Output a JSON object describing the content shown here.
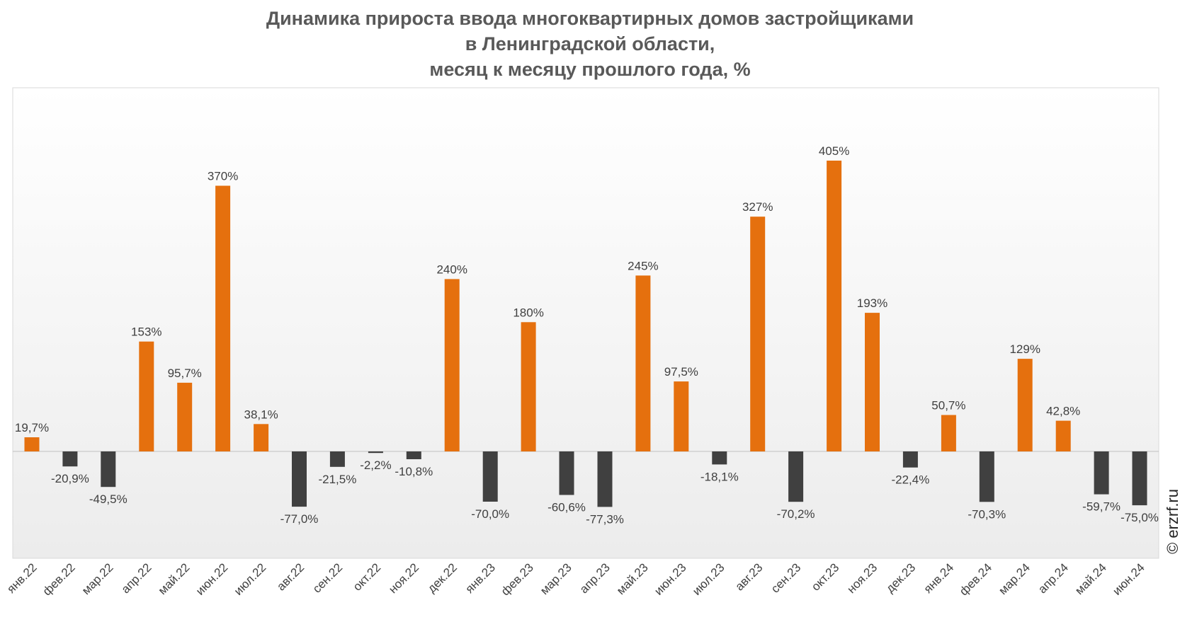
{
  "chart_data": {
    "type": "bar",
    "title": [
      "Динамика прироста ввода многоквартирных домов застройщиками",
      "в Ленинградской области,",
      "месяц к месяцу прошлого года, %"
    ],
    "categories": [
      "янв.22",
      "фев.22",
      "мар.22",
      "апр.22",
      "май.22",
      "июн.22",
      "июл.22",
      "авг.22",
      "сен.22",
      "окт.22",
      "ноя.22",
      "дек.22",
      "янв.23",
      "фев.23",
      "мар.23",
      "апр.23",
      "май.23",
      "июн.23",
      "июл.23",
      "авг.23",
      "сен.23",
      "окт.23",
      "ноя.23",
      "дек.23",
      "янв.24",
      "фев.24",
      "мар.24",
      "апр.24",
      "май.24",
      "июн.24"
    ],
    "values": [
      19.7,
      -20.9,
      -49.5,
      153,
      95.7,
      370,
      38.1,
      -77.0,
      -21.5,
      -2.2,
      -10.8,
      240,
      -70.0,
      180,
      -60.6,
      -77.3,
      245,
      97.5,
      -18.1,
      327,
      -70.2,
      405,
      193,
      -22.4,
      50.7,
      -70.3,
      129,
      42.8,
      -59.7,
      -75.0
    ],
    "labels": [
      "19,7%",
      "-20,9%",
      "-49,5%",
      "153%",
      "95,7%",
      "370%",
      "38,1%",
      "-77,0%",
      "-21,5%",
      "-2,2%",
      "-10,8%",
      "240%",
      "-70,0%",
      "180%",
      "-60,6%",
      "-77,3%",
      "245%",
      "97,5%",
      "-18,1%",
      "327%",
      "-70,2%",
      "405%",
      "193%",
      "-22,4%",
      "50,7%",
      "-70,3%",
      "129%",
      "42,8%",
      "-59,7%",
      "-75,0%"
    ],
    "positive_color": "#E5700E",
    "negative_color": "#404040",
    "ylim": [
      -150,
      500
    ],
    "grid": false,
    "legend": "none"
  },
  "watermark": "© erzrf.ru"
}
